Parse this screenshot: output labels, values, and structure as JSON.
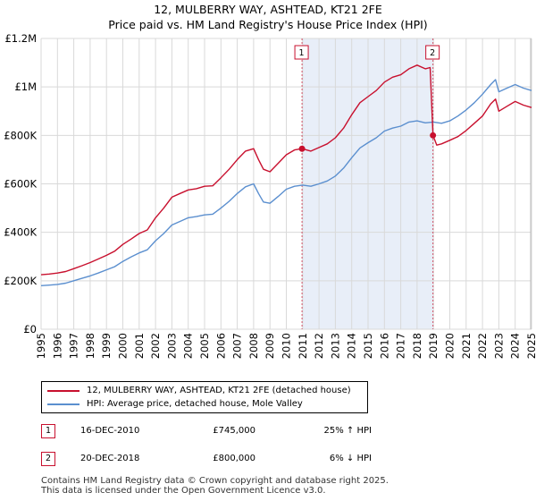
{
  "chart_data": {
    "type": "line",
    "title": "12, MULBERRY WAY, ASHTEAD, KT21 2FE",
    "subtitle": "Price paid vs. HM Land Registry's House Price Index (HPI)",
    "xlabel": "",
    "ylabel": "",
    "xlim": [
      1995.0,
      2025.0
    ],
    "ylim": [
      0,
      1200000
    ],
    "x_ticks": [
      1995,
      1996,
      1997,
      1998,
      1999,
      2000,
      2001,
      2002,
      2003,
      2004,
      2005,
      2006,
      2007,
      2008,
      2009,
      2010,
      2011,
      2012,
      2013,
      2014,
      2015,
      2016,
      2017,
      2018,
      2019,
      2020,
      2021,
      2022,
      2023,
      2024,
      2025
    ],
    "y_ticks": [
      {
        "value": 0,
        "label": "£0"
      },
      {
        "value": 200000,
        "label": "£200K"
      },
      {
        "value": 400000,
        "label": "£400K"
      },
      {
        "value": 600000,
        "label": "£600K"
      },
      {
        "value": 800000,
        "label": "£800K"
      },
      {
        "value": 1000000,
        "label": "£1M"
      },
      {
        "value": 1200000,
        "label": "£1.2M"
      }
    ],
    "grid": true,
    "shaded_region": [
      2010.96,
      2018.97
    ],
    "series": [
      {
        "name": "12, MULBERRY WAY, ASHTEAD, KT21 2FE (detached house)",
        "color": "#c8102e",
        "x": [
          1995.0,
          1995.5,
          1996.0,
          1996.5,
          1997.0,
          1997.5,
          1998.0,
          1998.5,
          1999.0,
          1999.5,
          2000.0,
          2000.5,
          2001.0,
          2001.5,
          2002.0,
          2002.5,
          2003.0,
          2003.5,
          2004.0,
          2004.5,
          2005.0,
          2005.5,
          2006.0,
          2006.5,
          2007.0,
          2007.5,
          2008.0,
          2008.3,
          2008.6,
          2009.0,
          2009.5,
          2010.0,
          2010.5,
          2010.96,
          2011.5,
          2012.0,
          2012.5,
          2013.0,
          2013.5,
          2014.0,
          2014.5,
          2015.0,
          2015.5,
          2016.0,
          2016.5,
          2017.0,
          2017.5,
          2018.0,
          2018.5,
          2018.8,
          2018.97,
          2019.2,
          2019.5,
          2020.0,
          2020.5,
          2021.0,
          2021.5,
          2022.0,
          2022.5,
          2022.8,
          2023.0,
          2023.5,
          2024.0,
          2024.5,
          2025.0
        ],
        "y": [
          225000,
          228000,
          232000,
          238000,
          250000,
          262000,
          275000,
          290000,
          305000,
          322000,
          350000,
          372000,
          395000,
          410000,
          460000,
          500000,
          545000,
          560000,
          575000,
          580000,
          590000,
          592000,
          625000,
          660000,
          700000,
          735000,
          745000,
          700000,
          660000,
          650000,
          685000,
          720000,
          740000,
          745000,
          735000,
          750000,
          765000,
          790000,
          830000,
          885000,
          935000,
          960000,
          985000,
          1020000,
          1040000,
          1050000,
          1075000,
          1090000,
          1075000,
          1080000,
          800000,
          760000,
          765000,
          780000,
          795000,
          820000,
          850000,
          880000,
          930000,
          950000,
          900000,
          920000,
          940000,
          925000,
          915000
        ]
      },
      {
        "name": "HPI: Average price, detached house, Mole Valley",
        "color": "#5b8fcf",
        "x": [
          1995.0,
          1995.5,
          1996.0,
          1996.5,
          1997.0,
          1997.5,
          1998.0,
          1998.5,
          1999.0,
          1999.5,
          2000.0,
          2000.5,
          2001.0,
          2001.5,
          2002.0,
          2002.5,
          2003.0,
          2003.5,
          2004.0,
          2004.5,
          2005.0,
          2005.5,
          2006.0,
          2006.5,
          2007.0,
          2007.5,
          2008.0,
          2008.3,
          2008.6,
          2009.0,
          2009.5,
          2010.0,
          2010.5,
          2011.0,
          2011.5,
          2012.0,
          2012.5,
          2013.0,
          2013.5,
          2014.0,
          2014.5,
          2015.0,
          2015.5,
          2016.0,
          2016.5,
          2017.0,
          2017.5,
          2018.0,
          2018.5,
          2019.0,
          2019.5,
          2020.0,
          2020.5,
          2021.0,
          2021.5,
          2022.0,
          2022.5,
          2022.8,
          2023.0,
          2023.5,
          2024.0,
          2024.5,
          2025.0
        ],
        "y": [
          180000,
          182000,
          185000,
          190000,
          200000,
          210000,
          220000,
          232000,
          245000,
          258000,
          280000,
          298000,
          315000,
          328000,
          365000,
          395000,
          430000,
          445000,
          460000,
          465000,
          472000,
          475000,
          500000,
          528000,
          560000,
          588000,
          600000,
          560000,
          525000,
          520000,
          548000,
          578000,
          590000,
          595000,
          590000,
          600000,
          612000,
          632000,
          665000,
          708000,
          748000,
          770000,
          790000,
          818000,
          830000,
          838000,
          855000,
          860000,
          852000,
          855000,
          850000,
          860000,
          880000,
          905000,
          935000,
          970000,
          1010000,
          1030000,
          980000,
          995000,
          1010000,
          995000,
          985000
        ]
      }
    ],
    "transactions": [
      {
        "label": "1",
        "x": 2010.96,
        "date": "16-DEC-2010",
        "price_value": 745000,
        "price": "£745,000",
        "hpi": "25% ↑ HPI"
      },
      {
        "label": "2",
        "x": 2018.97,
        "date": "20-DEC-2018",
        "price_value": 800000,
        "price": "£800,000",
        "hpi": "6% ↓ HPI"
      }
    ]
  },
  "legend": {
    "red_label": "12, MULBERRY WAY, ASHTEAD, KT21 2FE (detached house)",
    "blue_label": "HPI: Average price, detached house, Mole Valley"
  },
  "colors": {
    "red": "#c8102e",
    "blue": "#5b8fcf",
    "shade": "#e8eef8",
    "grid": "#d9d9d9"
  },
  "footer": {
    "line1": "Contains HM Land Registry data © Crown copyright and database right 2025.",
    "line2": "This data is licensed under the Open Government Licence v3.0."
  }
}
